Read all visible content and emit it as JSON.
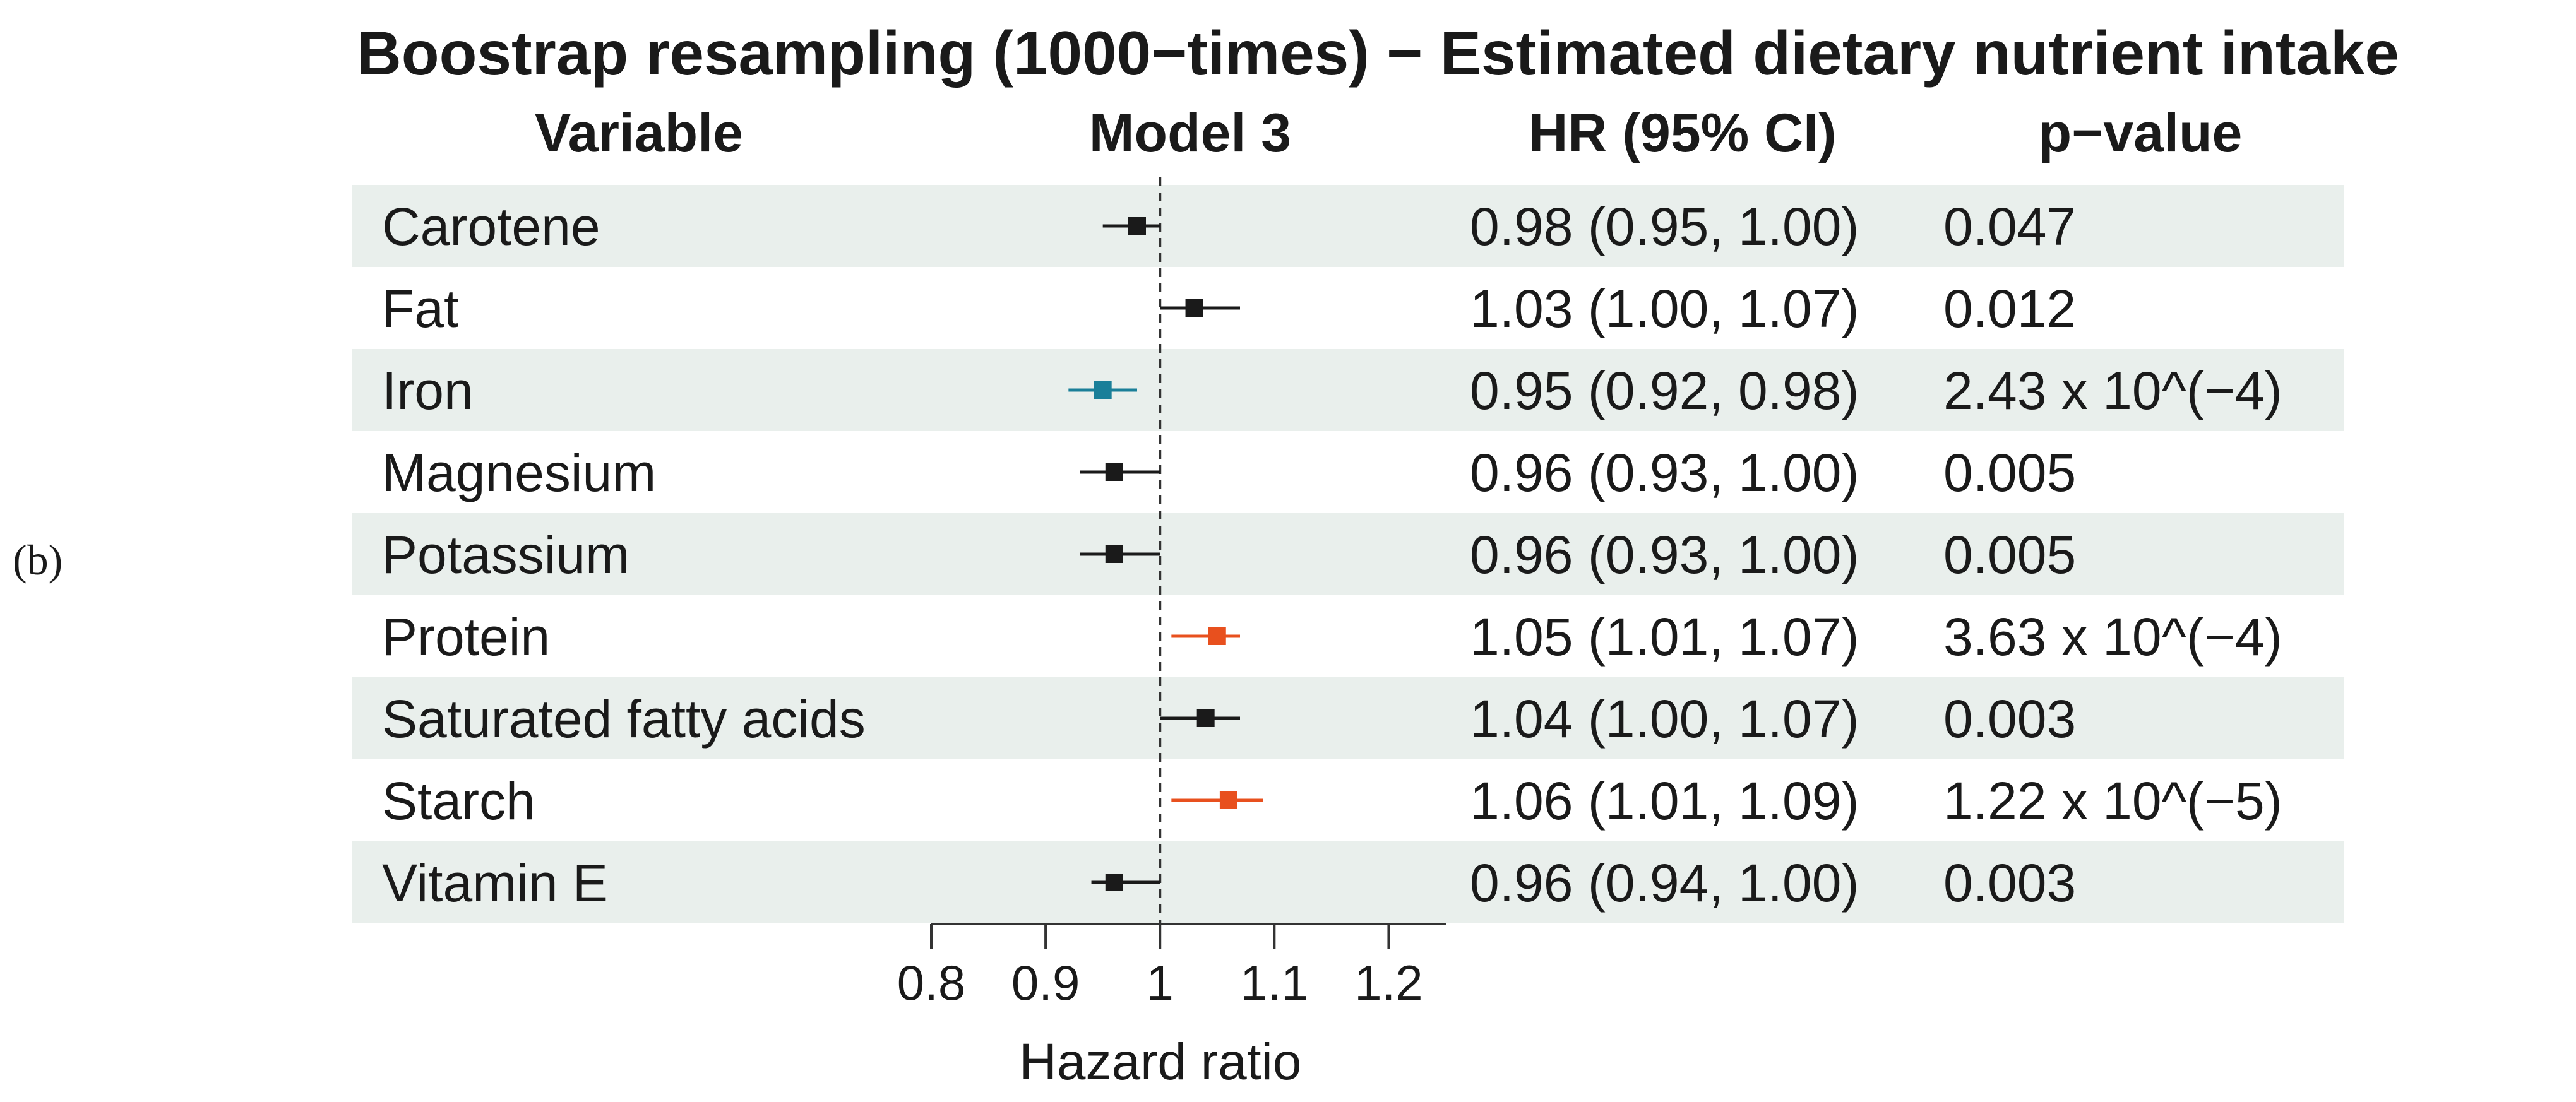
{
  "panel_label": "(b)",
  "chart_data": {
    "type": "forest",
    "title": "Boostrap resampling (1000−times) − Estimated dietary nutrient intake",
    "columns": {
      "variable": "Variable",
      "model": "Model 3",
      "hr": "HR (95% CI)",
      "pvalue": "p−value"
    },
    "xlabel": "Hazard ratio",
    "xlim": [
      0.8,
      1.25
    ],
    "reference_line": 1.0,
    "xticks": [
      0.8,
      0.9,
      1.0,
      1.1,
      1.2
    ],
    "xtick_labels": [
      "0.8",
      "0.9",
      "1",
      "1.1",
      "1.2"
    ],
    "colors": {
      "default": "#1a1a1a",
      "protective": "#1a7f99",
      "risk": "#e8501e",
      "row_shade": "#e9efec"
    },
    "rows": [
      {
        "variable": "Carotene",
        "hr": 0.98,
        "lower": 0.95,
        "upper": 1.0,
        "hr_text": "0.98 (0.95, 1.00)",
        "p_text": "0.047",
        "color": "default"
      },
      {
        "variable": "Fat",
        "hr": 1.03,
        "lower": 1.0,
        "upper": 1.07,
        "hr_text": "1.03 (1.00, 1.07)",
        "p_text": "0.012",
        "color": "default"
      },
      {
        "variable": "Iron",
        "hr": 0.95,
        "lower": 0.92,
        "upper": 0.98,
        "hr_text": "0.95 (0.92, 0.98)",
        "p_text": "2.43 x 10^(−4)",
        "color": "protective"
      },
      {
        "variable": "Magnesium",
        "hr": 0.96,
        "lower": 0.93,
        "upper": 1.0,
        "hr_text": "0.96 (0.93, 1.00)",
        "p_text": "0.005",
        "color": "default"
      },
      {
        "variable": "Potassium",
        "hr": 0.96,
        "lower": 0.93,
        "upper": 1.0,
        "hr_text": "0.96 (0.93, 1.00)",
        "p_text": "0.005",
        "color": "default"
      },
      {
        "variable": "Protein",
        "hr": 1.05,
        "lower": 1.01,
        "upper": 1.07,
        "hr_text": "1.05 (1.01, 1.07)",
        "p_text": "3.63 x 10^(−4)",
        "color": "risk"
      },
      {
        "variable": "Saturated fatty acids",
        "hr": 1.04,
        "lower": 1.0,
        "upper": 1.07,
        "hr_text": "1.04 (1.00, 1.07)",
        "p_text": "0.003",
        "color": "default"
      },
      {
        "variable": "Starch",
        "hr": 1.06,
        "lower": 1.01,
        "upper": 1.09,
        "hr_text": "1.06 (1.01, 1.09)",
        "p_text": "1.22 x 10^(−5)",
        "color": "risk"
      },
      {
        "variable": "Vitamin E",
        "hr": 0.96,
        "lower": 0.94,
        "upper": 1.0,
        "hr_text": "0.96 (0.94, 1.00)",
        "p_text": "0.003",
        "color": "default"
      }
    ]
  }
}
